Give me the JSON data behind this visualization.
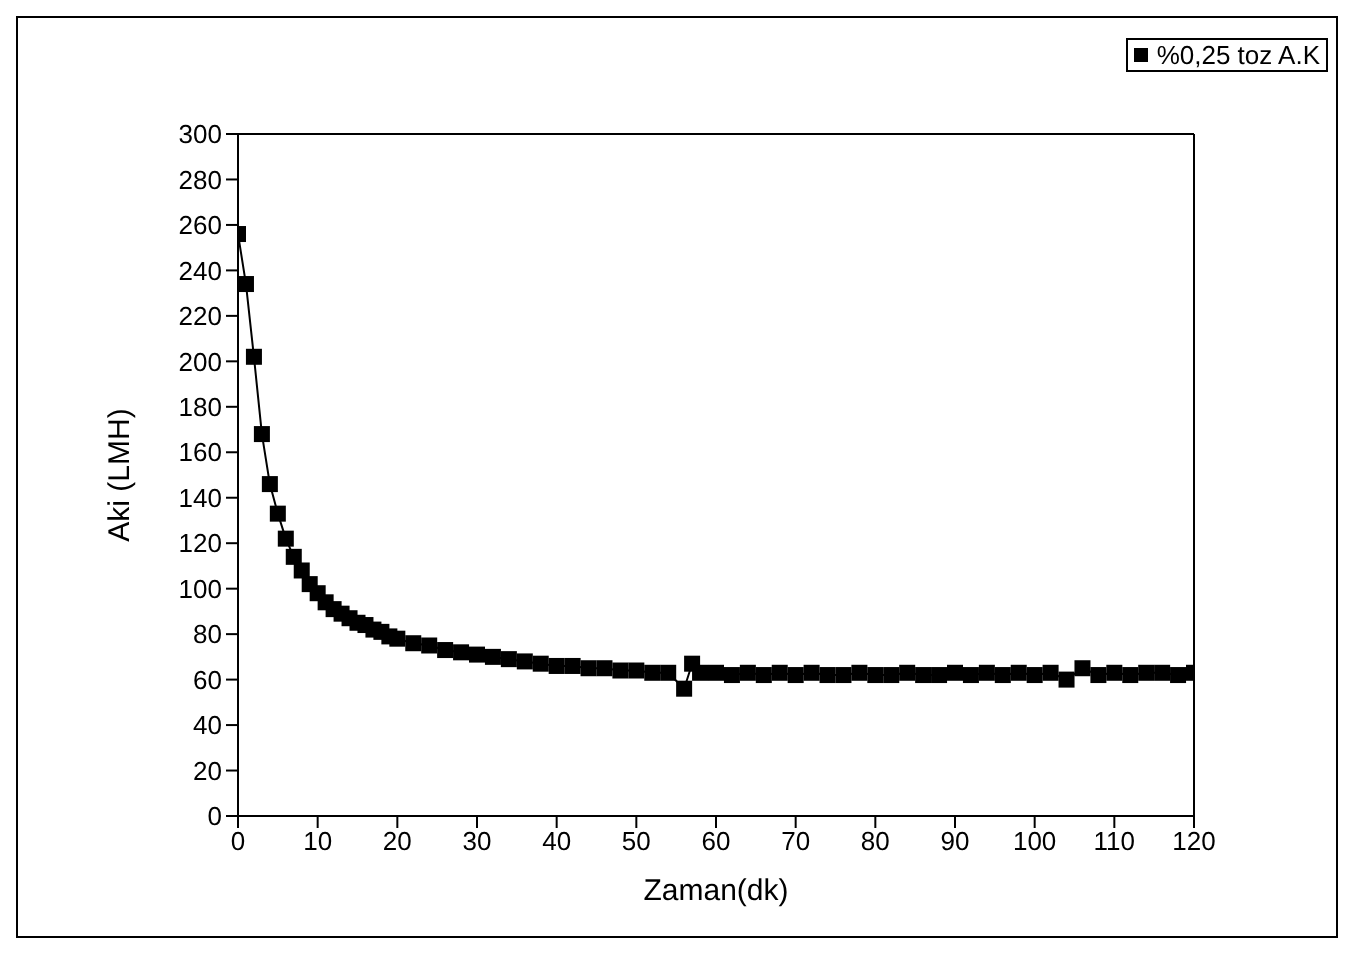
{
  "chart_data": {
    "type": "line",
    "xlabel": "Zaman(dk)",
    "ylabel": "Aki (LMH)",
    "xlim": [
      0,
      120
    ],
    "xticks": [
      0,
      10,
      20,
      30,
      40,
      50,
      60,
      70,
      80,
      90,
      100,
      110,
      120
    ],
    "ylim": [
      0,
      300
    ],
    "yticks": [
      0,
      20,
      40,
      60,
      80,
      100,
      120,
      140,
      160,
      180,
      200,
      220,
      240,
      260,
      280,
      300
    ],
    "marker": "square",
    "line_style": "solid",
    "legend": "top right",
    "x": [
      0,
      1,
      2,
      3,
      4,
      5,
      6,
      7,
      8,
      9,
      10,
      11,
      12,
      13,
      14,
      15,
      16,
      17,
      18,
      19,
      20,
      22,
      24,
      26,
      28,
      30,
      32,
      34,
      36,
      38,
      40,
      42,
      44,
      46,
      48,
      50,
      52,
      54,
      56,
      57,
      58,
      60,
      62,
      64,
      66,
      68,
      70,
      72,
      74,
      76,
      78,
      80,
      82,
      84,
      86,
      88,
      90,
      92,
      94,
      96,
      98,
      100,
      102,
      104,
      106,
      108,
      110,
      112,
      114,
      116,
      118,
      120
    ],
    "series": [
      {
        "name": "%0,25 toz A.K",
        "color": "#000000",
        "values": [
          256,
          234,
          202,
          168,
          146,
          133,
          122,
          114,
          108,
          102,
          98,
          94,
          91,
          89,
          87,
          85,
          84,
          82,
          81,
          79,
          78,
          76,
          75,
          73,
          72,
          71,
          70,
          69,
          68,
          67,
          66,
          66,
          65,
          65,
          64,
          64,
          63,
          63,
          56,
          67,
          63,
          63,
          62,
          63,
          62,
          63,
          62,
          63,
          62,
          62,
          63,
          62,
          62,
          63,
          62,
          62,
          63,
          62,
          63,
          62,
          63,
          62,
          63,
          60,
          65,
          62,
          63,
          62,
          63,
          63,
          62,
          63
        ]
      }
    ]
  }
}
